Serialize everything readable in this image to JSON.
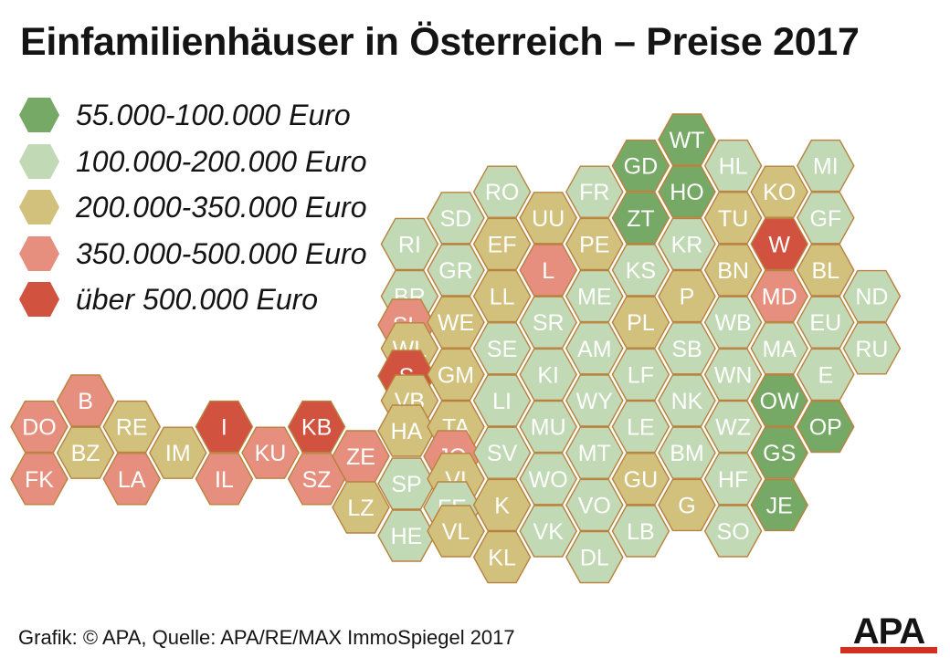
{
  "title": "Einfamilienhäuser in Österreich – Preise 2017",
  "legend": [
    {
      "label": "55.000-100.000 Euro",
      "color": "#76a866"
    },
    {
      "label": "100.000-200.000 Euro",
      "color": "#c1d9b4"
    },
    {
      "label": "200.000-350.000 Euro",
      "color": "#d2c17c"
    },
    {
      "label": "350.000-500.000 Euro",
      "color": "#e68f7e"
    },
    {
      "label": "über 500.000 Euro",
      "color": "#d1523f"
    }
  ],
  "districts": [
    {
      "code": "WT",
      "category": 0
    },
    {
      "code": "GD",
      "category": 0
    },
    {
      "code": "HL",
      "category": 1
    },
    {
      "code": "MI",
      "category": 1
    },
    {
      "code": "RO",
      "category": 1
    },
    {
      "code": "FR",
      "category": 1
    },
    {
      "code": "HO",
      "category": 0
    },
    {
      "code": "KO",
      "category": 2
    },
    {
      "code": "SD",
      "category": 1
    },
    {
      "code": "UU",
      "category": 2
    },
    {
      "code": "ZT",
      "category": 0
    },
    {
      "code": "TU",
      "category": 2
    },
    {
      "code": "GF",
      "category": 1
    },
    {
      "code": "RI",
      "category": 1
    },
    {
      "code": "EF",
      "category": 2
    },
    {
      "code": "PE",
      "category": 2
    },
    {
      "code": "KR",
      "category": 1
    },
    {
      "code": "W",
      "category": 4
    },
    {
      "code": "GR",
      "category": 1
    },
    {
      "code": "L",
      "category": 3
    },
    {
      "code": "KS",
      "category": 1
    },
    {
      "code": "BN",
      "category": 2
    },
    {
      "code": "BL",
      "category": 2
    },
    {
      "code": "BR",
      "category": 1
    },
    {
      "code": "LL",
      "category": 2
    },
    {
      "code": "ME",
      "category": 1
    },
    {
      "code": "P",
      "category": 2
    },
    {
      "code": "MD",
      "category": 3
    },
    {
      "code": "ND",
      "category": 1
    },
    {
      "code": "SL",
      "category": 3
    },
    {
      "code": "WE",
      "category": 2
    },
    {
      "code": "SR",
      "category": 1
    },
    {
      "code": "PL",
      "category": 2
    },
    {
      "code": "WB",
      "category": 1
    },
    {
      "code": "EU",
      "category": 1
    },
    {
      "code": "WL",
      "category": 2
    },
    {
      "code": "SE",
      "category": 1
    },
    {
      "code": "AM",
      "category": 1
    },
    {
      "code": "SB",
      "category": 1
    },
    {
      "code": "MA",
      "category": 1
    },
    {
      "code": "RU",
      "category": 1
    },
    {
      "code": "S",
      "category": 4
    },
    {
      "code": "GM",
      "category": 2
    },
    {
      "code": "KI",
      "category": 1
    },
    {
      "code": "LF",
      "category": 1
    },
    {
      "code": "WN",
      "category": 1
    },
    {
      "code": "E",
      "category": 1
    },
    {
      "code": "B",
      "category": 3
    },
    {
      "code": "VB",
      "category": 2
    },
    {
      "code": "LI",
      "category": 1
    },
    {
      "code": "WY",
      "category": 1
    },
    {
      "code": "NK",
      "category": 1
    },
    {
      "code": "OW",
      "category": 0
    },
    {
      "code": "DO",
      "category": 3
    },
    {
      "code": "RE",
      "category": 2
    },
    {
      "code": "I",
      "category": 4
    },
    {
      "code": "KB",
      "category": 4
    },
    {
      "code": "HA",
      "category": 2
    },
    {
      "code": "TA",
      "category": 2
    },
    {
      "code": "MU",
      "category": 1
    },
    {
      "code": "LE",
      "category": 1
    },
    {
      "code": "WZ",
      "category": 1
    },
    {
      "code": "OP",
      "category": 0
    },
    {
      "code": "BZ",
      "category": 2
    },
    {
      "code": "IM",
      "category": 2
    },
    {
      "code": "KU",
      "category": 3
    },
    {
      "code": "ZE",
      "category": 3
    },
    {
      "code": "JO",
      "category": 3
    },
    {
      "code": "SV",
      "category": 1
    },
    {
      "code": "MT",
      "category": 1
    },
    {
      "code": "BM",
      "category": 1
    },
    {
      "code": "GS",
      "category": 0
    },
    {
      "code": "FK",
      "category": 3
    },
    {
      "code": "LA",
      "category": 3
    },
    {
      "code": "IL",
      "category": 3
    },
    {
      "code": "SZ",
      "category": 3
    },
    {
      "code": "SP",
      "category": 1
    },
    {
      "code": "VI",
      "category": 2
    },
    {
      "code": "WO",
      "category": 1
    },
    {
      "code": "GU",
      "category": 2
    },
    {
      "code": "HF",
      "category": 1
    },
    {
      "code": "LZ",
      "category": 2
    },
    {
      "code": "FE",
      "category": 1
    },
    {
      "code": "K",
      "category": 2
    },
    {
      "code": "VO",
      "category": 1
    },
    {
      "code": "G",
      "category": 2
    },
    {
      "code": "JE",
      "category": 0
    },
    {
      "code": "HE",
      "category": 1
    },
    {
      "code": "VL",
      "category": 2
    },
    {
      "code": "VK",
      "category": 1
    },
    {
      "code": "LB",
      "category": 1
    },
    {
      "code": "SO",
      "category": 1
    },
    {
      "code": "KL",
      "category": 2
    },
    {
      "code": "DL",
      "category": 1
    }
  ],
  "source": "Grafik: © APA, Quelle: APA/RE/MAX ImmoSpiegel 2017",
  "logo": {
    "text": "APA",
    "bar_color": "#d62e1f"
  },
  "colors": {
    "hex_border": "#b9823f",
    "label_text": "#ffffff"
  }
}
